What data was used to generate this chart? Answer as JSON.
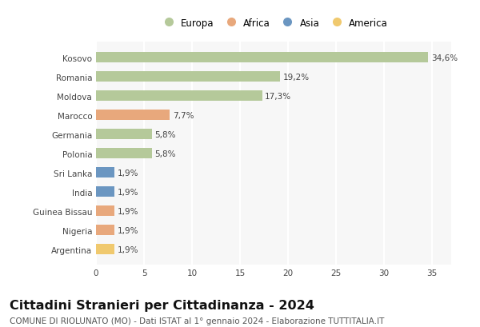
{
  "countries": [
    "Kosovo",
    "Romania",
    "Moldova",
    "Marocco",
    "Germania",
    "Polonia",
    "Sri Lanka",
    "India",
    "Guinea Bissau",
    "Nigeria",
    "Argentina"
  ],
  "values": [
    34.6,
    19.2,
    17.3,
    7.7,
    5.8,
    5.8,
    1.9,
    1.9,
    1.9,
    1.9,
    1.9
  ],
  "labels": [
    "34,6%",
    "19,2%",
    "17,3%",
    "7,7%",
    "5,8%",
    "5,8%",
    "1,9%",
    "1,9%",
    "1,9%",
    "1,9%",
    "1,9%"
  ],
  "continents": [
    "Europa",
    "Europa",
    "Europa",
    "Africa",
    "Europa",
    "Europa",
    "Asia",
    "Asia",
    "Africa",
    "Africa",
    "America"
  ],
  "colors": {
    "Europa": "#b5c99a",
    "Africa": "#e8a87c",
    "Asia": "#6b96c1",
    "America": "#f0c96e"
  },
  "legend_order": [
    "Europa",
    "Africa",
    "Asia",
    "America"
  ],
  "title": "Cittadini Stranieri per Cittadinanza - 2024",
  "subtitle": "COMUNE DI RIOLUNATO (MO) - Dati ISTAT al 1° gennaio 2024 - Elaborazione TUTTITALIA.IT",
  "xlim": [
    0,
    37
  ],
  "xticks": [
    0,
    5,
    10,
    15,
    20,
    25,
    30,
    35
  ],
  "background_color": "#ffffff",
  "plot_bg_color": "#f7f7f7",
  "grid_color": "#ffffff",
  "bar_height": 0.55,
  "title_fontsize": 11.5,
  "subtitle_fontsize": 7.5,
  "label_fontsize": 7.5,
  "tick_fontsize": 7.5,
  "legend_fontsize": 8.5
}
